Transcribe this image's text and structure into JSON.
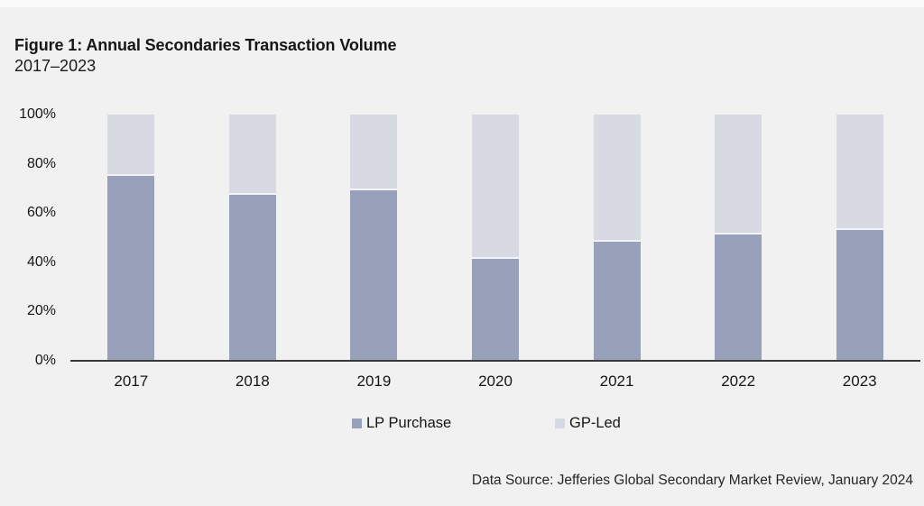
{
  "figure": {
    "title": "Figure 1: Annual Secondaries Transaction Volume",
    "subtitle": "2017–2023",
    "source": "Data Source: Jefferies Global Secondary Market Review, January 2024"
  },
  "chart_data": {
    "type": "bar",
    "variant": "100-percent-stacked-column",
    "title": "Figure 1: Annual Secondaries Transaction Volume",
    "subtitle": "2017–2023",
    "categories": [
      "2017",
      "2018",
      "2019",
      "2020",
      "2021",
      "2022",
      "2023"
    ],
    "series": [
      {
        "name": "LP Purchase",
        "color": "#98a1b9",
        "values_pct": [
          76,
          68,
          70,
          42,
          49,
          52,
          54
        ]
      },
      {
        "name": "GP-Led",
        "color": "#d7dae2",
        "values_pct": [
          24,
          32,
          30,
          58,
          51,
          48,
          46
        ]
      }
    ],
    "ylim": [
      0,
      100
    ],
    "yticks": [
      "0%",
      "20%",
      "40%",
      "60%",
      "80%",
      "100%"
    ],
    "xlabel": "",
    "ylabel": "",
    "grid": false,
    "legend_position": "bottom-center",
    "source_note": "Data Source: Jefferies Global Secondary Market Review, January 2024"
  },
  "colors": {
    "background": "#f1f1f1",
    "lp_purchase": "#98a1b9",
    "gp_led": "#d7dae2",
    "axis_line": "#3a3a3a",
    "text": "#1b1b1b",
    "segment_gap": "#f3f4f7"
  }
}
